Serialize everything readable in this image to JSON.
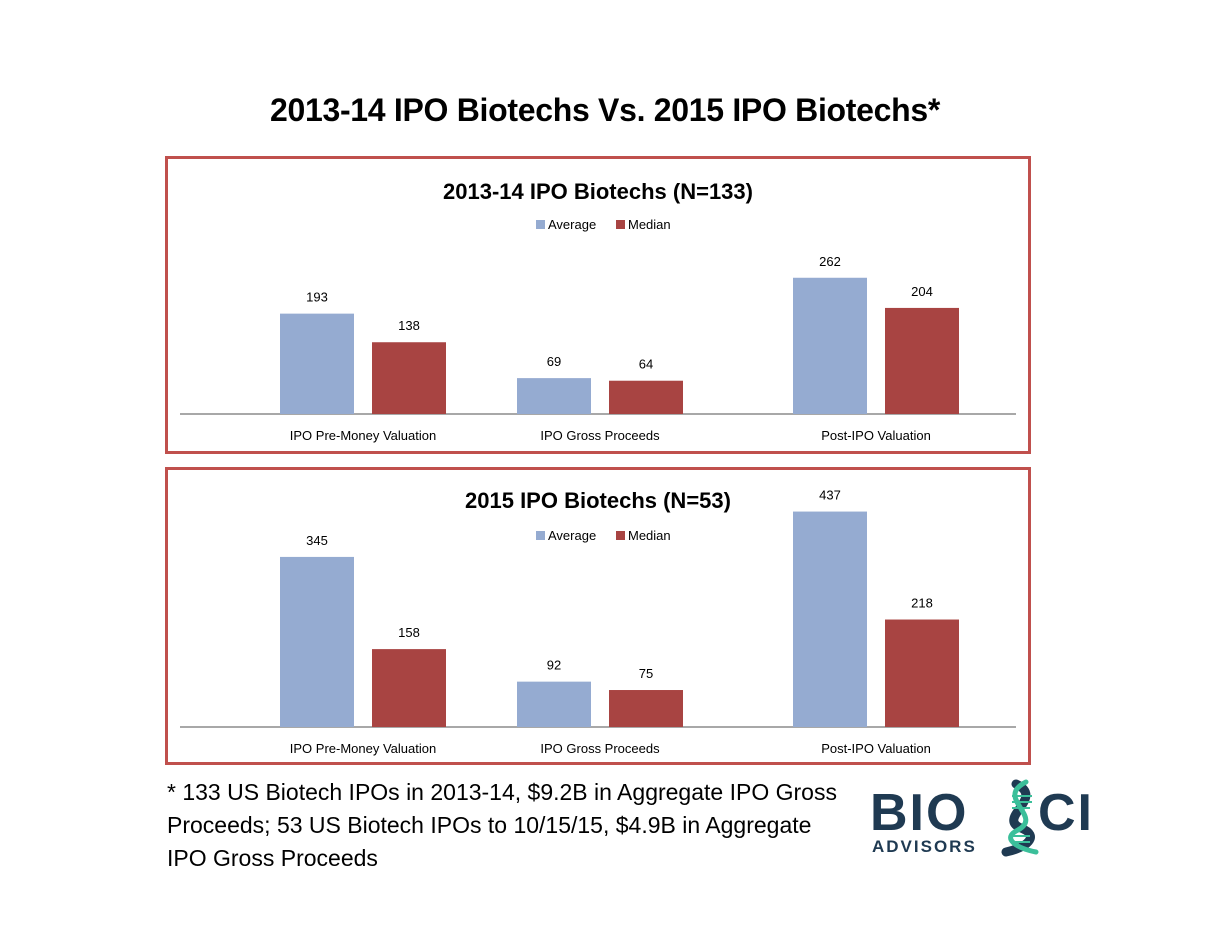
{
  "main_title": "2013-14 IPO Biotechs Vs. 2015 IPO Biotechs*",
  "colors": {
    "average": "#95abd1",
    "median": "#a84442",
    "panel_border": "#c0504d",
    "axis": "#8c8c8c",
    "logo_dark": "#1f3a52",
    "logo_teal": "#3bbf9a"
  },
  "chart_data": [
    {
      "type": "bar",
      "title": "2013-14 IPO Biotechs (N=133)",
      "categories": [
        "IPO Pre-Money Valuation",
        "IPO Gross Proceeds",
        "Post-IPO Valuation"
      ],
      "series": [
        {
          "name": "Average",
          "values": [
            193,
            69,
            262
          ]
        },
        {
          "name": "Median",
          "values": [
            138,
            64,
            204
          ]
        }
      ],
      "legend": "top-center",
      "xlabel": "",
      "ylabel": "",
      "ylim": [
        0,
        300
      ],
      "grid": false
    },
    {
      "type": "bar",
      "title": "2015 IPO Biotechs (N=53)",
      "categories": [
        "IPO Pre-Money Valuation",
        "IPO Gross Proceeds",
        "Post-IPO Valuation"
      ],
      "series": [
        {
          "name": "Average",
          "values": [
            345,
            92,
            437
          ]
        },
        {
          "name": "Median",
          "values": [
            158,
            75,
            218
          ]
        }
      ],
      "legend": "top-center",
      "xlabel": "",
      "ylabel": "",
      "ylim": [
        0,
        500
      ],
      "grid": false
    }
  ],
  "footnote": "* 133 US Biotech IPOs in 2013-14, $9.2B in Aggregate IPO Gross Proceeds; 53 US Biotech IPOs to 10/15/15, $4.9B in Aggregate IPO Gross Proceeds",
  "logo": {
    "text_left": "BIO",
    "text_right": "CI",
    "subtitle": "ADVISORS"
  }
}
